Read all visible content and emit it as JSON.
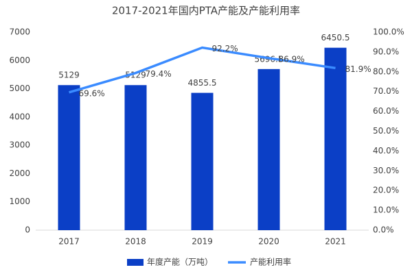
{
  "chart_data": {
    "type": "bar",
    "title": "2017-2021年国内PTA产能及产能利用率",
    "categories": [
      "2017",
      "2018",
      "2019",
      "2020",
      "2021"
    ],
    "series": [
      {
        "name": "年度产能（万吨）",
        "type": "bar",
        "color": "#0b3fc6",
        "values": [
          5129,
          5129,
          4855.5,
          5696.5,
          6450.5
        ]
      },
      {
        "name": "产能利用率",
        "type": "line",
        "axis": "y2",
        "color": "#3a8bff",
        "values": [
          69.6,
          79.4,
          92.2,
          86.9,
          81.9
        ],
        "value_labels": [
          "69.6%",
          "79.4%",
          "92.2%",
          "86.9%",
          "81.9%"
        ]
      }
    ],
    "ylim": [
      0,
      7000
    ],
    "yticks": [
      0,
      1000,
      2000,
      3000,
      4000,
      5000,
      6000,
      7000
    ],
    "y2lim": [
      0,
      100
    ],
    "y2ticks": [
      {
        "value": 0,
        "label": "0.0%"
      },
      {
        "value": 10,
        "label": "10.0%"
      },
      {
        "value": 20,
        "label": "20.0%"
      },
      {
        "value": 30,
        "label": "30.0%"
      },
      {
        "value": 40,
        "label": "40.0%"
      },
      {
        "value": 50,
        "label": "50.0%"
      },
      {
        "value": 60,
        "label": "60.0%"
      },
      {
        "value": 70,
        "label": "70.0%"
      },
      {
        "value": 80,
        "label": "80.0%"
      },
      {
        "value": 90,
        "label": "90.0%"
      },
      {
        "value": 100,
        "label": "100.0%"
      }
    ],
    "grid": false,
    "legend": "bottom"
  }
}
